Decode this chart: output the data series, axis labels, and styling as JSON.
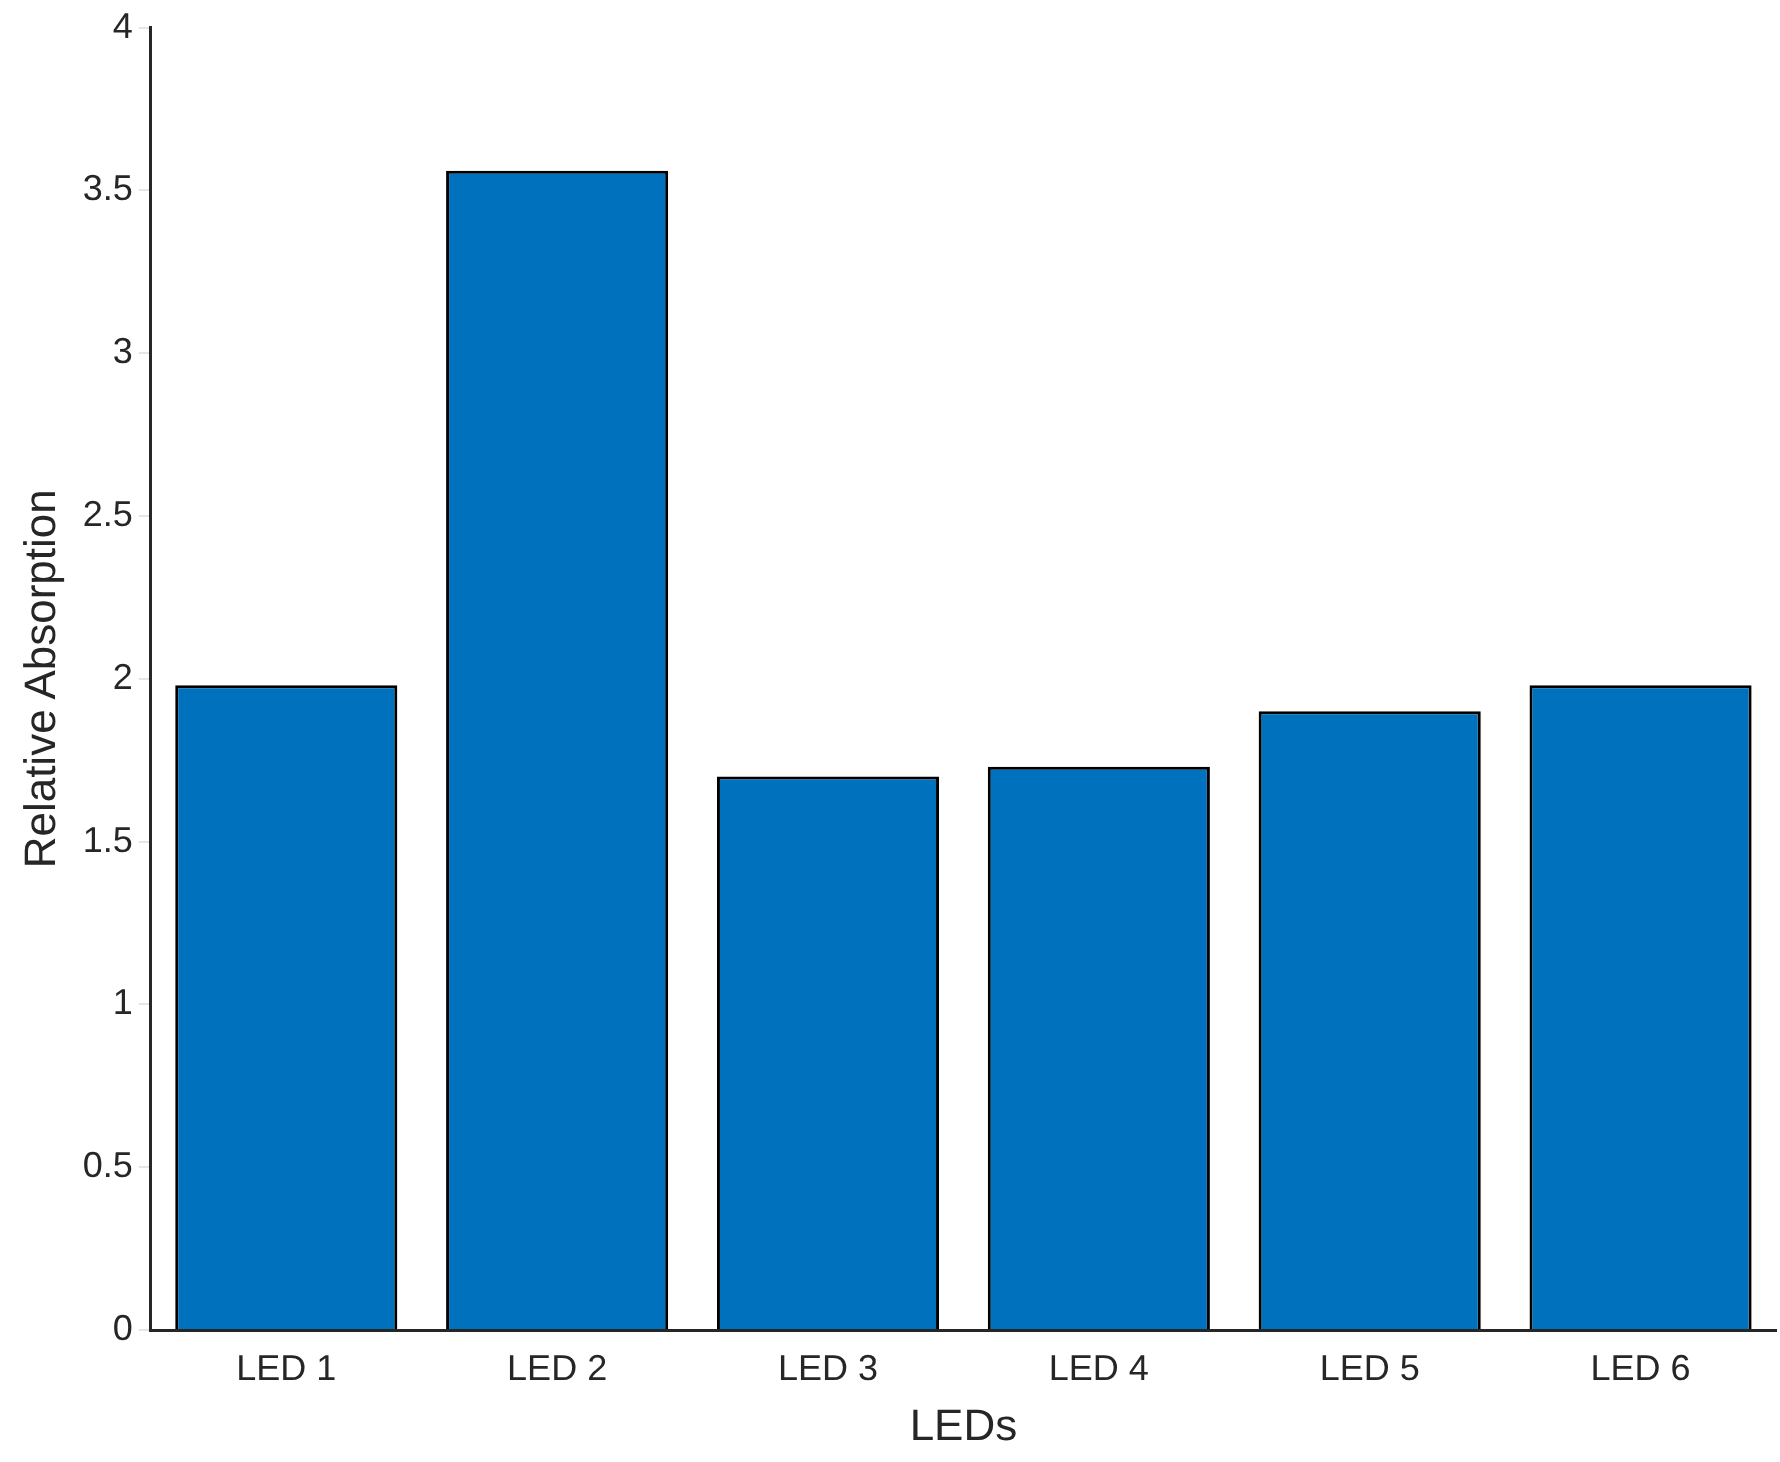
{
  "chart_data": {
    "type": "bar",
    "xlabel": "LEDs",
    "ylabel": "Relative Absorption",
    "categories": [
      "LED 1",
      "LED 2",
      "LED 3",
      "LED 4",
      "LED 5",
      "LED 6"
    ],
    "values": [
      1.98,
      3.56,
      1.7,
      1.73,
      1.9,
      1.98
    ],
    "color": "#0072bd",
    "ylim": [
      0,
      4
    ],
    "yticks": [
      0,
      0.5,
      1,
      1.5,
      2,
      2.5,
      3,
      3.5,
      4
    ],
    "grid": false,
    "legend": false
  }
}
